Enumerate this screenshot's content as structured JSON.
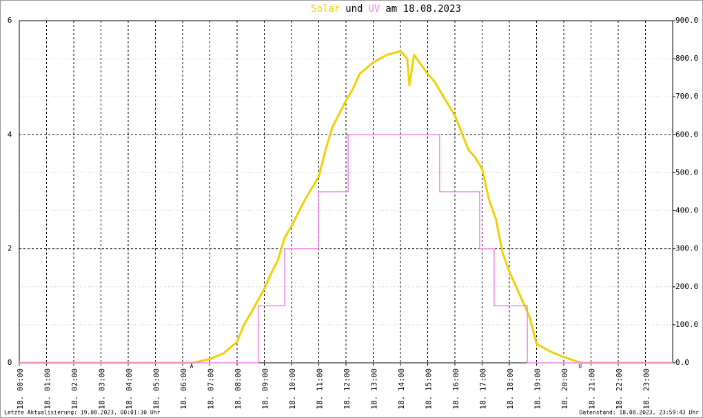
{
  "chart_data": {
    "type": "line",
    "title_parts": [
      {
        "text": "Solar",
        "color": "#f0d000"
      },
      {
        "text": "und",
        "color": "#000000"
      },
      {
        "text": "UV",
        "color": "#ee82ee"
      },
      {
        "text": "am 18.08.2023",
        "color": "#000000"
      }
    ],
    "footer_left": "Letzte Aktualisierung: 19.08.2023, 00:01:30 Uhr",
    "footer_right": "Datenstand: 18.08.2023, 23:59:43 Uhr",
    "xlim": [
      0,
      24
    ],
    "xticks": [
      {
        "value": 0,
        "label": "18. 00:00"
      },
      {
        "value": 1,
        "label": "18. 01:00"
      },
      {
        "value": 2,
        "label": "18. 02:00"
      },
      {
        "value": 3,
        "label": "18. 03:00"
      },
      {
        "value": 4,
        "label": "18. 04:00"
      },
      {
        "value": 5,
        "label": "18. 05:00"
      },
      {
        "value": 6,
        "label": "18. 06:00"
      },
      {
        "value": 7,
        "label": "18. 07:00"
      },
      {
        "value": 8,
        "label": "18. 08:00"
      },
      {
        "value": 9,
        "label": "18. 09:00"
      },
      {
        "value": 10,
        "label": "18. 10:00"
      },
      {
        "value": 11,
        "label": "18. 11:00"
      },
      {
        "value": 12,
        "label": "18. 12:00"
      },
      {
        "value": 13,
        "label": "18. 13:00"
      },
      {
        "value": 14,
        "label": "18. 14:00"
      },
      {
        "value": 15,
        "label": "18. 15:00"
      },
      {
        "value": 16,
        "label": "18. 16:00"
      },
      {
        "value": 17,
        "label": "18. 17:00"
      },
      {
        "value": 18,
        "label": "18. 18:00"
      },
      {
        "value": 19,
        "label": "18. 19:00"
      },
      {
        "value": 20,
        "label": "18. 20:00"
      },
      {
        "value": 21,
        "label": "18. 21:00"
      },
      {
        "value": 22,
        "label": "18. 22:00"
      },
      {
        "value": 23,
        "label": "18. 23:00"
      }
    ],
    "ylim": [
      0,
      6
    ],
    "yticks": [
      0,
      2,
      4,
      6
    ],
    "y2lim": [
      0,
      900
    ],
    "y2ticks": [
      {
        "value": 0,
        "label": "0.0"
      },
      {
        "value": 100,
        "label": "100.0"
      },
      {
        "value": 200,
        "label": "200.0"
      },
      {
        "value": 300,
        "label": "300.0"
      },
      {
        "value": 400,
        "label": "400.0"
      },
      {
        "value": 500,
        "label": "500.0"
      },
      {
        "value": 600,
        "label": "600.0"
      },
      {
        "value": 700,
        "label": "700.0"
      },
      {
        "value": 800,
        "label": "800.0"
      },
      {
        "value": 900,
        "label": "900.0"
      }
    ],
    "grid": true,
    "annotations": [
      {
        "text": "A",
        "x": 6.33,
        "color": "#cc0000"
      },
      {
        "text": "U",
        "x": 20.6,
        "color": "#cc0000"
      }
    ],
    "series": [
      {
        "name": "Solar",
        "color": "#f0d000",
        "axis": "y2",
        "step": false,
        "x": [
          0,
          6.38,
          6.5,
          7,
          7.5,
          8,
          8.25,
          8.5,
          9,
          9.25,
          9.5,
          9.75,
          10,
          10.5,
          11,
          11.25,
          11.5,
          12,
          12.25,
          12.5,
          13,
          13.5,
          14,
          14.25,
          14.33,
          14.5,
          15,
          15.25,
          15.5,
          16,
          16.5,
          16.75,
          17,
          17.25,
          17.5,
          17.75,
          18,
          18.5,
          18.75,
          19,
          19.25,
          19.5,
          20,
          20.5,
          20.67,
          24
        ],
        "values": [
          0,
          0,
          2,
          10,
          25,
          55,
          100,
          130,
          195,
          235,
          270,
          330,
          360,
          430,
          490,
          560,
          620,
          690,
          720,
          760,
          790,
          810,
          820,
          800,
          730,
          810,
          760,
          740,
          710,
          650,
          560,
          540,
          510,
          430,
          380,
          290,
          240,
          160,
          120,
          50,
          40,
          30,
          15,
          3,
          0,
          0
        ]
      },
      {
        "name": "UV",
        "color": "#ee82ee",
        "step": true,
        "x": [
          0,
          8.78,
          9.75,
          10.99,
          12.08,
          15.44,
          16.91,
          17.44,
          18.66,
          24
        ],
        "values": [
          0,
          1,
          2,
          3,
          4,
          3,
          2,
          1,
          0,
          0
        ]
      }
    ]
  }
}
